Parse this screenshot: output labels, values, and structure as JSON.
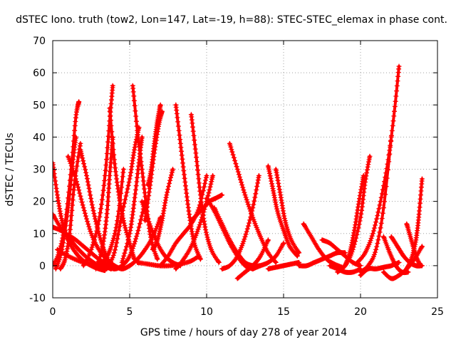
{
  "chart_data": {
    "type": "scatter",
    "title": "dSTEC Iono. truth (tow2, Lon=147, Lat=-19, h=88): STEC-STEC_elemax in phase cont.",
    "xlabel": "GPS time / hours of day 278 of year 2014",
    "ylabel": "dSTEC  / TECUs",
    "xlim": [
      0,
      25
    ],
    "ylim": [
      -10,
      70
    ],
    "x_ticks": [
      "0",
      "5",
      "10",
      "15",
      "20",
      "25"
    ],
    "y_ticks": [
      "-10",
      "0",
      "10",
      "20",
      "30",
      "40",
      "50",
      "60",
      "70"
    ],
    "grid": true,
    "legend": "none",
    "marker": "+",
    "color": "#ff0000",
    "series": [
      {
        "x": [
          0.0,
          0.3,
          0.6,
          1.0,
          1.5,
          2.0,
          2.5,
          3.0,
          3.4
        ],
        "y": [
          32,
          22,
          14,
          8,
          4,
          1.5,
          0,
          -1,
          -1.5
        ]
      },
      {
        "x": [
          0.0,
          0.5,
          1.0,
          1.5,
          2.0,
          2.5,
          3.0,
          3.5,
          3.8
        ],
        "y": [
          16,
          12,
          9,
          6,
          3.5,
          1.5,
          0,
          -0.5,
          -1
        ]
      },
      {
        "x": [
          0.0,
          0.5,
          1.0,
          1.5,
          2.0,
          2.5,
          3.0,
          3.5,
          4.0
        ],
        "y": [
          12,
          11,
          9.5,
          8,
          6,
          4,
          2,
          0.5,
          -1
        ]
      },
      {
        "x": [
          0.0,
          0.4,
          0.8,
          1.2,
          1.5,
          1.7
        ],
        "y": [
          0,
          4,
          13,
          30,
          46,
          51
        ]
      },
      {
        "x": [
          0.2,
          0.6,
          1.0,
          1.3,
          1.5
        ],
        "y": [
          -1,
          5,
          18,
          32,
          40
        ]
      },
      {
        "x": [
          0.5,
          0.8,
          1.1,
          1.4,
          1.8
        ],
        "y": [
          -1,
          2,
          10,
          25,
          38
        ]
      },
      {
        "x": [
          1.0,
          1.5,
          2.0,
          2.5,
          3.0,
          3.5,
          4.0
        ],
        "y": [
          34,
          27,
          18,
          10,
          5,
          2,
          0
        ]
      },
      {
        "x": [
          1.8,
          2.2,
          2.6,
          3.0,
          3.4,
          3.8
        ],
        "y": [
          36,
          28,
          18,
          10,
          4,
          0
        ]
      },
      {
        "x": [
          0.3,
          1.0,
          1.7,
          2.4,
          3.1,
          3.8
        ],
        "y": [
          5,
          3,
          1.5,
          0.5,
          0,
          -0.5
        ]
      },
      {
        "x": [
          2.0,
          2.5,
          3.0,
          3.4,
          3.7,
          3.9
        ],
        "y": [
          0,
          5,
          14,
          28,
          45,
          56
        ]
      },
      {
        "x": [
          2.8,
          3.2,
          3.5,
          3.7,
          3.9
        ],
        "y": [
          -1,
          5,
          15,
          28,
          40
        ]
      },
      {
        "x": [
          3.0,
          3.4,
          3.8,
          4.2,
          4.6
        ],
        "y": [
          0.5,
          2,
          6,
          14,
          30
        ]
      },
      {
        "x": [
          3.7,
          4.0,
          4.3,
          4.6,
          5.0,
          5.3
        ],
        "y": [
          49,
          33,
          22,
          14,
          7,
          2
        ]
      },
      {
        "x": [
          3.5,
          4.0,
          4.5,
          5.0,
          5.5,
          6.0
        ],
        "y": [
          0,
          -1,
          0,
          3,
          10,
          20
        ]
      },
      {
        "x": [
          4.0,
          4.5,
          5.0,
          5.5,
          6.0,
          6.5,
          7.0
        ],
        "y": [
          0,
          -1,
          0,
          2,
          5,
          9,
          15
        ]
      },
      {
        "x": [
          3.5,
          4.0,
          4.5,
          5.0,
          5.3,
          5.6
        ],
        "y": [
          -1,
          4,
          16,
          27,
          36,
          43
        ]
      },
      {
        "x": [
          4.5,
          5.0,
          5.3,
          5.6,
          5.8
        ],
        "y": [
          1,
          10,
          20,
          32,
          40
        ]
      },
      {
        "x": [
          5.2,
          5.5,
          5.8,
          6.1,
          6.4,
          6.8
        ],
        "y": [
          56,
          42,
          30,
          18,
          8,
          2
        ]
      },
      {
        "x": [
          6.0,
          6.3,
          6.6,
          6.9,
          7.1
        ],
        "y": [
          14,
          24,
          35,
          44,
          48
        ]
      },
      {
        "x": [
          6.2,
          6.4,
          6.6,
          6.8,
          7.0
        ],
        "y": [
          25,
          30,
          38,
          45,
          50
        ]
      },
      {
        "x": [
          6.5,
          6.8,
          7.1,
          7.4,
          7.8
        ],
        "y": [
          5,
          8,
          14,
          22,
          30
        ]
      },
      {
        "x": [
          5.5,
          6.2,
          6.9,
          7.6,
          8.3,
          9.0,
          9.5
        ],
        "y": [
          1,
          0.5,
          0,
          0,
          0.5,
          1.5,
          3
        ]
      },
      {
        "x": [
          5.8,
          6.3,
          6.8,
          7.3,
          7.8,
          8.3
        ],
        "y": [
          20,
          13,
          7,
          3,
          1,
          0
        ]
      },
      {
        "x": [
          8.0,
          8.3,
          8.6,
          8.9,
          9.2,
          9.6
        ],
        "y": [
          50,
          38,
          26,
          15,
          7,
          2
        ]
      },
      {
        "x": [
          9.0,
          9.3,
          9.6,
          9.9,
          10.3,
          10.8
        ],
        "y": [
          47,
          35,
          22,
          12,
          5,
          1
        ]
      },
      {
        "x": [
          7.0,
          7.5,
          8.0,
          8.5,
          9.0,
          9.5,
          10.0
        ],
        "y": [
          0,
          3,
          7,
          10,
          13,
          18,
          28
        ]
      },
      {
        "x": [
          8.0,
          8.5,
          9.0,
          9.5,
          10.0,
          10.4
        ],
        "y": [
          -1,
          2,
          6,
          12,
          20,
          28
        ]
      },
      {
        "x": [
          9.0,
          9.4,
          9.8,
          10.2,
          10.6,
          11.0
        ],
        "y": [
          14,
          16,
          18,
          20,
          21,
          22
        ]
      },
      {
        "x": [
          10.0,
          10.5,
          11.0,
          11.5,
          12.0,
          12.5,
          13.0
        ],
        "y": [
          21,
          17,
          12,
          7,
          3,
          0,
          -1
        ]
      },
      {
        "x": [
          10.5,
          11.0,
          11.5,
          12.0,
          12.5,
          13.0,
          13.5
        ],
        "y": [
          18,
          13,
          8,
          4,
          1,
          0,
          0
        ]
      },
      {
        "x": [
          11.5,
          12.0,
          12.5,
          13.0,
          13.5,
          14.0,
          14.5
        ],
        "y": [
          38,
          30,
          22,
          15,
          9,
          4,
          1
        ]
      },
      {
        "x": [
          11.0,
          11.5,
          12.0,
          12.5,
          13.0,
          13.4
        ],
        "y": [
          -1,
          0,
          3,
          9,
          18,
          28
        ]
      },
      {
        "x": [
          12.0,
          12.5,
          13.0,
          13.5,
          14.0
        ],
        "y": [
          -4,
          -2,
          0,
          3,
          8
        ]
      },
      {
        "x": [
          14.0,
          14.3,
          14.6,
          15.0,
          15.4,
          15.9
        ],
        "y": [
          31,
          24,
          17,
          11,
          6,
          3
        ]
      },
      {
        "x": [
          14.5,
          14.8,
          15.1,
          15.5,
          16.0
        ],
        "y": [
          30,
          22,
          14,
          8,
          4
        ]
      },
      {
        "x": [
          13.0,
          13.5,
          14.0,
          14.5,
          15.0
        ],
        "y": [
          -1,
          0,
          1,
          3,
          7
        ]
      },
      {
        "x": [
          14.0,
          14.5,
          15.0,
          15.5,
          16.0
        ],
        "y": [
          -1,
          -0.5,
          0,
          0.5,
          1
        ]
      },
      {
        "x": [
          16.3,
          16.8,
          17.3,
          17.8,
          18.3,
          18.8
        ],
        "y": [
          13,
          9,
          5,
          2,
          0.5,
          -0.5
        ]
      },
      {
        "x": [
          16.0,
          16.5,
          17.0,
          17.5,
          18.0,
          18.5,
          19.0
        ],
        "y": [
          0,
          0,
          1,
          2,
          3,
          4,
          4
        ]
      },
      {
        "x": [
          17.5,
          18.0,
          18.5,
          19.0,
          19.5,
          20.0
        ],
        "y": [
          8,
          7,
          5,
          3,
          1,
          0
        ]
      },
      {
        "x": [
          18.0,
          18.5,
          19.0,
          19.5,
          20.0
        ],
        "y": [
          0,
          -1,
          -2,
          -2,
          -1
        ]
      },
      {
        "x": [
          18.5,
          19.0,
          19.5,
          20.0,
          20.3,
          20.6
        ],
        "y": [
          -2,
          0,
          5,
          15,
          26,
          34
        ]
      },
      {
        "x": [
          19.0,
          19.3,
          19.6,
          19.9,
          20.2
        ],
        "y": [
          0,
          4,
          11,
          20,
          28
        ]
      },
      {
        "x": [
          19.8,
          20.3,
          20.8,
          21.3,
          21.8,
          22.2,
          22.5
        ],
        "y": [
          1,
          4,
          10,
          20,
          33,
          48,
          62
        ]
      },
      {
        "x": [
          20.0,
          20.5,
          21.0,
          21.5,
          22.0
        ],
        "y": [
          -2,
          0,
          5,
          18,
          40
        ]
      },
      {
        "x": [
          20.0,
          20.5,
          21.0,
          21.5,
          22.0,
          22.5
        ],
        "y": [
          -3,
          -1,
          -1,
          -0.5,
          0,
          1
        ]
      },
      {
        "x": [
          21.5,
          21.9,
          22.3,
          22.7,
          23.1
        ],
        "y": [
          9,
          4,
          0,
          -2,
          -2
        ]
      },
      {
        "x": [
          22.0,
          22.4,
          22.8,
          23.2,
          23.6,
          24.0
        ],
        "y": [
          9,
          6,
          3,
          1,
          0,
          0
        ]
      },
      {
        "x": [
          21.5,
          22.0,
          22.5,
          23.0,
          23.5,
          24.0
        ],
        "y": [
          -2,
          -4,
          -3,
          -1,
          2,
          6
        ]
      },
      {
        "x": [
          23.0,
          23.3,
          23.6,
          23.8,
          24.0
        ],
        "y": [
          -1,
          2,
          8,
          16,
          27
        ]
      },
      {
        "x": [
          23.0,
          23.3,
          23.6,
          23.9
        ],
        "y": [
          13,
          8,
          3,
          0
        ]
      }
    ]
  }
}
